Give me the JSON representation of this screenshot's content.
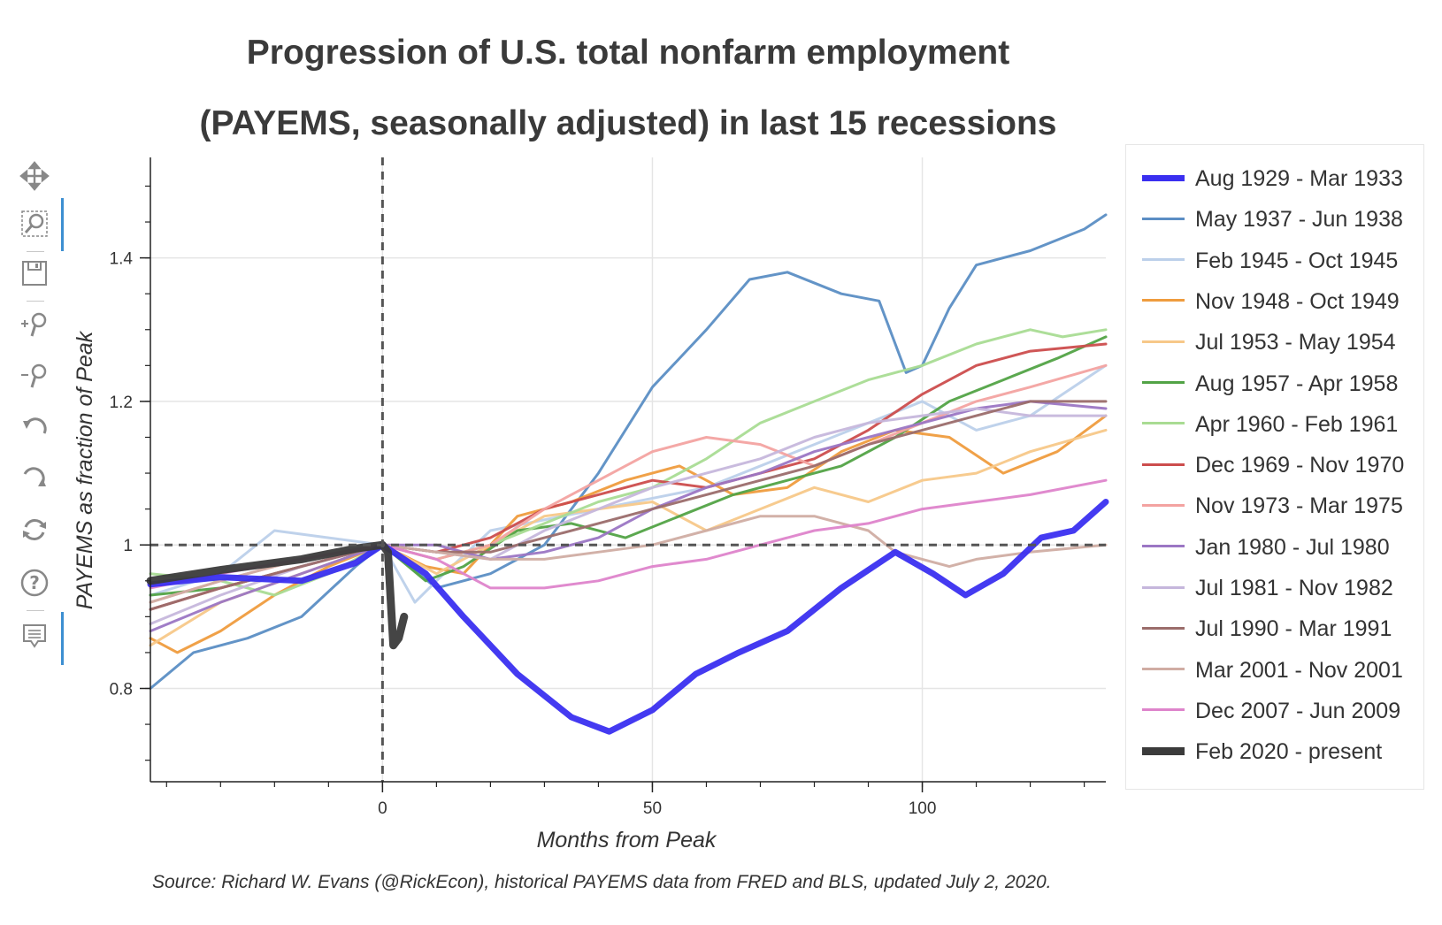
{
  "chart_data": {
    "type": "line",
    "title": "Progression of U.S. total nonfarm employment",
    "subtitle": "(PAYEMS, seasonally adjusted) in last 15 recessions",
    "xlabel": "Months from Peak",
    "ylabel": "PAYEMS as fraction of Peak",
    "xlim": [
      -43,
      134
    ],
    "ylim": [
      0.67,
      1.54
    ],
    "xticks": [
      0,
      50,
      100
    ],
    "yticks": [
      0.8,
      1,
      1.2,
      1.4
    ],
    "ytick_labels": [
      "0.8",
      "1",
      "1.2",
      "1.4"
    ],
    "grid": true,
    "legend_position": "right",
    "reference_lines": {
      "x": 0,
      "y": 1
    },
    "source": "Source: Richard W. Evans (@RickEcon), historical PAYEMS data from FRED and BLS, updated July 2, 2020.",
    "series": [
      {
        "name": "Aug 1929 - Mar 1933",
        "color": "#3a2ff0",
        "width": 7,
        "x": [
          -43,
          -30,
          -15,
          -5,
          0,
          8,
          15,
          25,
          35,
          42,
          50,
          58,
          66,
          75,
          85,
          95,
          102,
          108,
          115,
          122,
          128,
          134
        ],
        "y": [
          0.945,
          0.955,
          0.95,
          0.975,
          1.0,
          0.96,
          0.9,
          0.82,
          0.76,
          0.74,
          0.77,
          0.82,
          0.85,
          0.88,
          0.94,
          0.99,
          0.96,
          0.93,
          0.96,
          1.01,
          1.02,
          1.06
        ]
      },
      {
        "name": "May 1937 - Jun 1938",
        "color": "#5b8ec4",
        "width": 3,
        "x": [
          -43,
          -35,
          -25,
          -15,
          -5,
          0,
          5,
          10,
          20,
          30,
          40,
          50,
          60,
          68,
          75,
          85,
          92,
          97,
          100,
          105,
          110,
          120,
          130,
          134
        ],
        "y": [
          0.8,
          0.85,
          0.87,
          0.9,
          0.97,
          1.0,
          0.97,
          0.94,
          0.96,
          1.0,
          1.1,
          1.22,
          1.3,
          1.37,
          1.38,
          1.35,
          1.34,
          1.24,
          1.25,
          1.33,
          1.39,
          1.41,
          1.44,
          1.46
        ]
      },
      {
        "name": "Feb 1945 - Oct 1945",
        "color": "#bcd0ea",
        "width": 3,
        "x": [
          -43,
          -30,
          -20,
          -10,
          0,
          3,
          6,
          10,
          20,
          40,
          60,
          80,
          100,
          110,
          120,
          134
        ],
        "y": [
          0.93,
          0.96,
          1.02,
          1.01,
          1.0,
          0.96,
          0.92,
          0.95,
          1.02,
          1.05,
          1.08,
          1.14,
          1.2,
          1.16,
          1.18,
          1.25
        ]
      },
      {
        "name": "Nov 1948 - Oct 1949",
        "color": "#ef9c3e",
        "width": 3,
        "x": [
          -43,
          -38,
          -30,
          -20,
          -10,
          0,
          8,
          15,
          25,
          35,
          45,
          55,
          65,
          75,
          85,
          95,
          105,
          115,
          125,
          134
        ],
        "y": [
          0.87,
          0.85,
          0.88,
          0.93,
          0.97,
          1.0,
          0.97,
          0.96,
          1.04,
          1.06,
          1.09,
          1.11,
          1.07,
          1.08,
          1.13,
          1.16,
          1.15,
          1.1,
          1.13,
          1.18
        ]
      },
      {
        "name": "Jul 1953 - May 1954",
        "color": "#f7c889",
        "width": 3,
        "x": [
          -43,
          -30,
          -15,
          0,
          10,
          20,
          30,
          40,
          50,
          60,
          70,
          80,
          90,
          100,
          110,
          120,
          134
        ],
        "y": [
          0.86,
          0.92,
          0.96,
          1.0,
          0.96,
          1.0,
          1.04,
          1.05,
          1.06,
          1.02,
          1.05,
          1.08,
          1.06,
          1.09,
          1.1,
          1.13,
          1.16
        ]
      },
      {
        "name": "Aug 1957 - Apr 1958",
        "color": "#52a346",
        "width": 3,
        "x": [
          -43,
          -30,
          -15,
          0,
          8,
          15,
          25,
          35,
          45,
          55,
          65,
          75,
          85,
          95,
          105,
          115,
          125,
          134
        ],
        "y": [
          0.93,
          0.94,
          0.97,
          1.0,
          0.95,
          0.97,
          1.02,
          1.03,
          1.01,
          1.04,
          1.07,
          1.09,
          1.11,
          1.15,
          1.2,
          1.23,
          1.26,
          1.29
        ]
      },
      {
        "name": "Apr 1960 - Feb 1961",
        "color": "#a9dc93",
        "width": 3,
        "x": [
          -43,
          -30,
          -20,
          -10,
          0,
          10,
          20,
          30,
          40,
          50,
          60,
          70,
          80,
          90,
          100,
          110,
          120,
          126,
          134
        ],
        "y": [
          0.96,
          0.95,
          0.93,
          0.96,
          1.0,
          0.98,
          1.0,
          1.03,
          1.06,
          1.08,
          1.12,
          1.17,
          1.2,
          1.23,
          1.25,
          1.28,
          1.3,
          1.29,
          1.3
        ]
      },
      {
        "name": "Dec 1969 - Nov 1970",
        "color": "#cc4d4d",
        "width": 3,
        "x": [
          -43,
          -30,
          -15,
          0,
          10,
          20,
          30,
          40,
          50,
          60,
          70,
          80,
          90,
          100,
          110,
          120,
          134
        ],
        "y": [
          0.91,
          0.94,
          0.97,
          1.0,
          0.99,
          1.01,
          1.05,
          1.07,
          1.09,
          1.08,
          1.1,
          1.12,
          1.16,
          1.21,
          1.25,
          1.27,
          1.28
        ]
      },
      {
        "name": "Nov 1973 - Mar 1975",
        "color": "#f3a3a1",
        "width": 3,
        "x": [
          -43,
          -30,
          -15,
          0,
          10,
          20,
          30,
          40,
          50,
          60,
          70,
          80,
          90,
          100,
          110,
          120,
          134
        ],
        "y": [
          0.92,
          0.95,
          0.98,
          1.0,
          0.98,
          1.0,
          1.05,
          1.09,
          1.13,
          1.15,
          1.14,
          1.11,
          1.14,
          1.17,
          1.2,
          1.22,
          1.25
        ]
      },
      {
        "name": "Jan 1980 - Jul 1980",
        "color": "#9b76c4",
        "width": 3,
        "x": [
          -43,
          -30,
          -15,
          0,
          10,
          20,
          30,
          40,
          50,
          60,
          70,
          80,
          90,
          100,
          110,
          120,
          134
        ],
        "y": [
          0.88,
          0.92,
          0.96,
          1.0,
          1.0,
          0.98,
          0.99,
          1.01,
          1.05,
          1.08,
          1.1,
          1.13,
          1.15,
          1.17,
          1.19,
          1.2,
          1.19
        ]
      },
      {
        "name": "Jul 1981 - Nov 1982",
        "color": "#c6b7dc",
        "width": 3,
        "x": [
          -43,
          -30,
          -15,
          0,
          10,
          20,
          30,
          40,
          50,
          60,
          70,
          80,
          90,
          100,
          110,
          120,
          134
        ],
        "y": [
          0.89,
          0.93,
          0.97,
          1.0,
          0.99,
          0.98,
          1.02,
          1.05,
          1.08,
          1.1,
          1.12,
          1.15,
          1.17,
          1.18,
          1.19,
          1.18,
          1.18
        ]
      },
      {
        "name": "Jul 1990 - Mar 1991",
        "color": "#9b6d6b",
        "width": 3,
        "x": [
          -43,
          -30,
          -15,
          0,
          10,
          20,
          30,
          40,
          50,
          60,
          70,
          80,
          90,
          100,
          110,
          120,
          134
        ],
        "y": [
          0.91,
          0.94,
          0.97,
          1.0,
          0.99,
          0.99,
          1.01,
          1.03,
          1.05,
          1.07,
          1.09,
          1.11,
          1.14,
          1.16,
          1.18,
          1.2,
          1.2
        ]
      },
      {
        "name": "Mar 2001 - Nov 2001",
        "color": "#d0ada3",
        "width": 3,
        "x": [
          -43,
          -30,
          -15,
          0,
          10,
          20,
          30,
          40,
          50,
          60,
          70,
          80,
          90,
          95,
          100,
          105,
          110,
          120,
          134
        ],
        "y": [
          0.92,
          0.95,
          0.98,
          1.0,
          0.99,
          0.98,
          0.98,
          0.99,
          1.0,
          1.02,
          1.04,
          1.04,
          1.02,
          0.99,
          0.98,
          0.97,
          0.98,
          0.99,
          1.0
        ]
      },
      {
        "name": "Dec 2007 - Jun 2009",
        "color": "#de84cb",
        "width": 3,
        "x": [
          -43,
          -30,
          -15,
          0,
          10,
          20,
          30,
          40,
          50,
          60,
          70,
          80,
          90,
          100,
          110,
          120,
          134
        ],
        "y": [
          0.94,
          0.96,
          0.98,
          1.0,
          0.98,
          0.94,
          0.94,
          0.95,
          0.97,
          0.98,
          1.0,
          1.02,
          1.03,
          1.05,
          1.06,
          1.07,
          1.09
        ]
      },
      {
        "name": "Feb 2020 - present",
        "color": "#3b3b3b",
        "width": 9,
        "x": [
          -43,
          -30,
          -15,
          -5,
          0,
          1,
          2,
          3,
          4
        ],
        "y": [
          0.95,
          0.965,
          0.98,
          0.995,
          1.0,
          0.99,
          0.86,
          0.87,
          0.9
        ]
      }
    ]
  },
  "toolbar": {
    "tools": [
      {
        "icon": "pan-icon",
        "active": false
      },
      {
        "icon": "box-zoom-icon",
        "active": true
      },
      {
        "icon": "save-icon",
        "active": false
      },
      {
        "icon": "zoom-in-icon",
        "active": false
      },
      {
        "icon": "zoom-out-icon",
        "active": false
      },
      {
        "icon": "undo-icon",
        "active": false
      },
      {
        "icon": "redo-icon",
        "active": false
      },
      {
        "icon": "reset-icon",
        "active": false
      },
      {
        "icon": "help-icon",
        "active": false
      },
      {
        "icon": "hover-icon",
        "active": true
      }
    ],
    "accent_color": "#3d8fd1"
  }
}
